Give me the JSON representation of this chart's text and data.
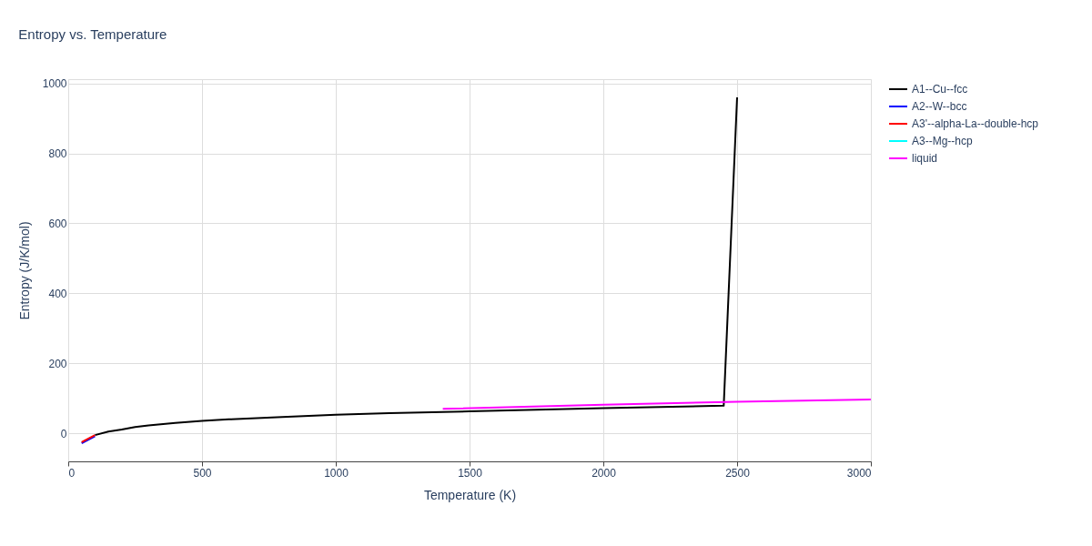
{
  "chart_data": {
    "type": "line",
    "title": "Entropy vs. Temperature",
    "xlabel": "Temperature (K)",
    "ylabel": "Entropy (J/K/mol)",
    "xlim": [
      0,
      3000
    ],
    "xticks": [
      0,
      500,
      1000,
      1500,
      2000,
      2500,
      3000
    ],
    "ylim": [
      -80,
      1012
    ],
    "yticks": [
      0,
      200,
      400,
      600,
      800,
      1000
    ],
    "grid": true,
    "legend": "top right",
    "line_style": "solid",
    "marker": "none",
    "series": [
      {
        "name": "A1--Cu--fcc",
        "color": "#000000",
        "x": [
          100,
          150,
          200,
          250,
          300,
          400,
          500,
          600,
          800,
          1000,
          1200,
          1500,
          2000,
          2450,
          2500
        ],
        "values": [
          -5,
          5,
          11,
          18,
          23,
          30,
          36,
          40,
          47,
          53,
          58,
          63,
          72,
          79,
          960
        ]
      },
      {
        "name": "A2--W--bcc",
        "color": "#0000ff",
        "x": [
          50,
          100
        ],
        "values": [
          -28,
          -8
        ]
      },
      {
        "name": "A3'--alpha-La--double-hcp",
        "color": "#ff0000",
        "x": [
          50,
          100
        ],
        "values": [
          -25,
          -5
        ]
      },
      {
        "name": "A3--Mg--hcp",
        "color": "#00ffff"
      },
      {
        "name": "liquid",
        "color": "#ff00ff",
        "x": [
          1400,
          2000,
          2500,
          3000
        ],
        "values": [
          70,
          82,
          90,
          97
        ]
      }
    ]
  }
}
